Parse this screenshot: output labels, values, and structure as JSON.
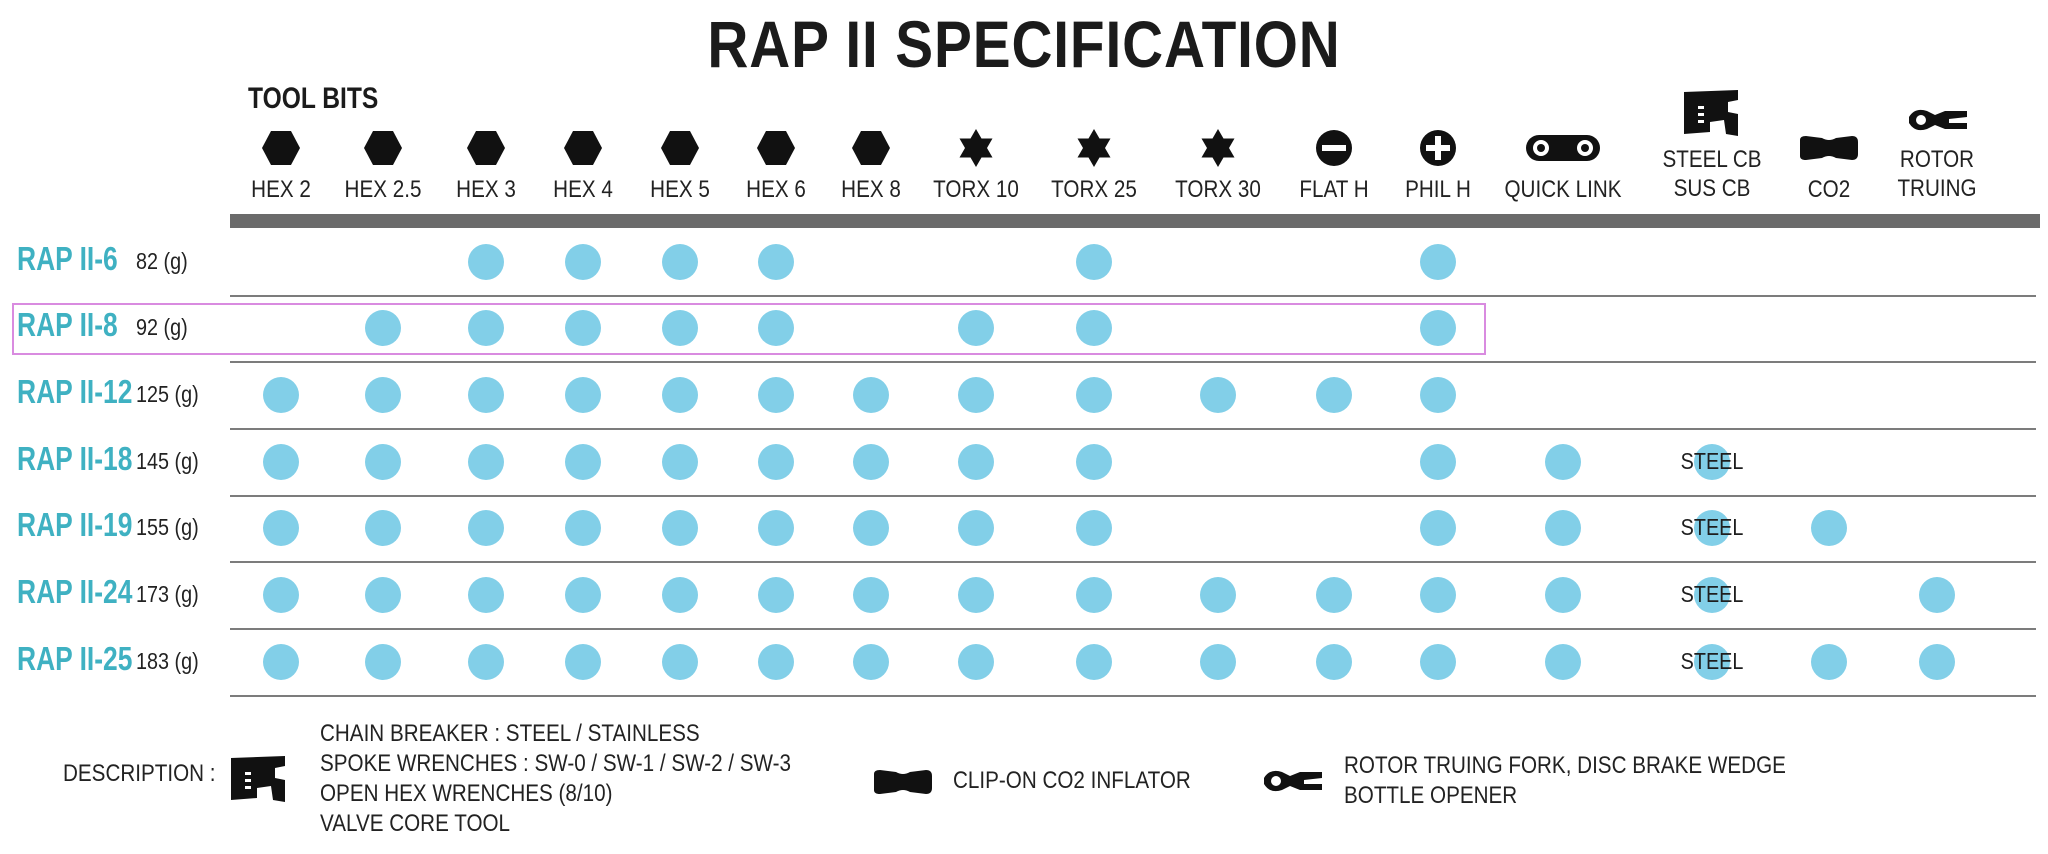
{
  "title": "RAP II SPECIFICATION",
  "section_label": "TOOL BITS",
  "columns": [
    {
      "label": [
        "HEX 2"
      ],
      "icon": "hexagon-icon"
    },
    {
      "label": [
        "HEX 2.5"
      ],
      "icon": "hexagon-icon"
    },
    {
      "label": [
        "HEX 3"
      ],
      "icon": "hexagon-icon"
    },
    {
      "label": [
        "HEX 4"
      ],
      "icon": "hexagon-icon"
    },
    {
      "label": [
        "HEX 5"
      ],
      "icon": "hexagon-icon"
    },
    {
      "label": [
        "HEX 6"
      ],
      "icon": "hexagon-icon"
    },
    {
      "label": [
        "HEX 8"
      ],
      "icon": "hexagon-icon"
    },
    {
      "label": [
        "TORX 10"
      ],
      "icon": "torx-star-icon"
    },
    {
      "label": [
        "TORX 25"
      ],
      "icon": "torx-star-icon"
    },
    {
      "label": [
        "TORX 30"
      ],
      "icon": "torx-star-icon"
    },
    {
      "label": [
        "FLAT H"
      ],
      "icon": "flat-head-icon"
    },
    {
      "label": [
        "PHIL H"
      ],
      "icon": "phillips-head-icon"
    },
    {
      "label": [
        "QUICK LINK"
      ],
      "icon": "quick-link-icon"
    },
    {
      "label": [
        "STEEL CB",
        "SUS CB"
      ],
      "icon": "chain-breaker-icon"
    },
    {
      "label": [
        "CO2"
      ],
      "icon": "co2-inflator-icon"
    },
    {
      "label": [
        "ROTOR",
        "TRUING"
      ],
      "icon": "rotor-truing-icon"
    }
  ],
  "rows": [
    {
      "name": "RAP II-6",
      "weight": "82 (g)",
      "cells": [
        0,
        0,
        1,
        1,
        1,
        1,
        0,
        0,
        1,
        0,
        0,
        1,
        0,
        0,
        0,
        0
      ]
    },
    {
      "name": "RAP II-8",
      "weight": "92 (g)",
      "cells": [
        0,
        1,
        1,
        1,
        1,
        1,
        0,
        1,
        1,
        0,
        0,
        1,
        0,
        0,
        0,
        0
      ]
    },
    {
      "name": "RAP II-12",
      "weight": "125 (g)",
      "cells": [
        1,
        1,
        1,
        1,
        1,
        1,
        1,
        1,
        1,
        1,
        1,
        1,
        0,
        0,
        0,
        0
      ]
    },
    {
      "name": "RAP II-18",
      "weight": "145 (g)",
      "cells": [
        1,
        1,
        1,
        1,
        1,
        1,
        1,
        1,
        1,
        0,
        0,
        1,
        1,
        "STEEL",
        0,
        0
      ]
    },
    {
      "name": "RAP II-19",
      "weight": "155 (g)",
      "cells": [
        1,
        1,
        1,
        1,
        1,
        1,
        1,
        1,
        1,
        0,
        0,
        1,
        1,
        "STEEL",
        1,
        0
      ]
    },
    {
      "name": "RAP II-24",
      "weight": "173 (g)",
      "cells": [
        1,
        1,
        1,
        1,
        1,
        1,
        1,
        1,
        1,
        1,
        1,
        1,
        1,
        "STEEL",
        0,
        1
      ]
    },
    {
      "name": "RAP II-25",
      "weight": "183 (g)",
      "cells": [
        1,
        1,
        1,
        1,
        1,
        1,
        1,
        1,
        1,
        1,
        1,
        1,
        1,
        "STEEL",
        1,
        1
      ]
    }
  ],
  "highlighted_row": "RAP II-8",
  "description": {
    "label": "DESCRIPTION :",
    "chain_breaker": [
      "CHAIN BREAKER : STEEL / STAINLESS",
      "SPOKE WRENCHES : SW-0 / SW-1 / SW-2 / SW-3",
      "OPEN HEX WRENCHES (8/10)",
      "VALVE CORE TOOL"
    ],
    "co2": [
      "CLIP-ON CO2 INFLATOR"
    ],
    "rotor": [
      "ROTOR TRUING FORK, DISC BRAKE WEDGE",
      "BOTTLE OPENER"
    ]
  },
  "colors": {
    "dot": "#82cfe8",
    "model_name": "#3fb1c2",
    "highlight_border": "#d98be0",
    "header_bar": "#6b6b6b"
  }
}
